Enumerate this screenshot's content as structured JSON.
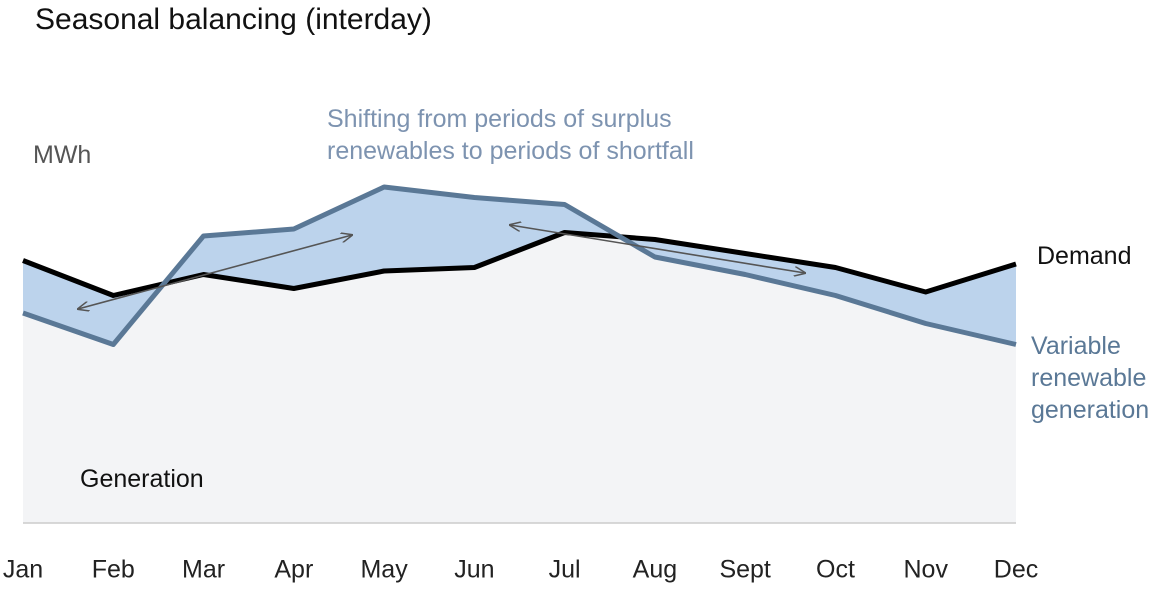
{
  "chart_data": {
    "type": "line",
    "title": "Seasonal balancing (interday)",
    "y_label": "MWh",
    "annotation": "Shifting from periods of surplus renewables to periods of shortfall",
    "area_label": "Generation",
    "categories": [
      "Jan",
      "Feb",
      "Mar",
      "Apr",
      "May",
      "Jun",
      "Jul",
      "Aug",
      "Sept",
      "Oct",
      "Nov",
      "Dec"
    ],
    "series": [
      {
        "name": "Demand",
        "color": "#000000",
        "values": [
          75,
          65,
          71,
          67,
          72,
          73,
          83,
          81,
          77,
          73,
          66,
          74
        ]
      },
      {
        "name": "Variable renewable generation",
        "color": "#5a7896",
        "values": [
          60,
          51,
          82,
          84,
          96,
          93,
          91,
          76,
          71,
          65,
          57,
          51
        ]
      }
    ],
    "band_color": "#bcd3ec",
    "area_color": "#f3f4f6",
    "ylim": [
      0,
      100
    ]
  }
}
